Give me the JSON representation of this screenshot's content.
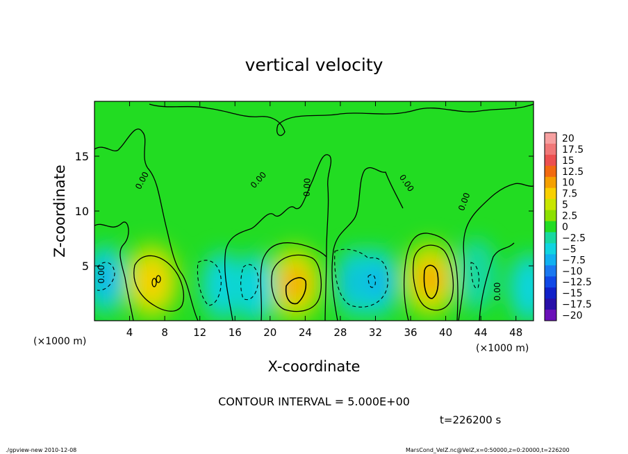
{
  "chart_data": {
    "type": "heatmap",
    "title": "vertical velocity",
    "xlabel": "X-coordinate",
    "ylabel": "Z-coordinate",
    "x_unit_left": "(×1000 m)",
    "x_unit_right": "(×1000 m)",
    "xlim": [
      0,
      50
    ],
    "ylim": [
      0,
      20
    ],
    "x_ticks": [
      4,
      8,
      12,
      16,
      20,
      24,
      28,
      32,
      36,
      40,
      44,
      48
    ],
    "y_ticks": [
      5,
      10,
      15
    ],
    "contour_interval_text": "CONTOUR INTERVAL = 5.000E+00",
    "time_text": "t=226200 s",
    "contour_labels": [
      "0.00",
      "0.00",
      "0.00",
      "0.00",
      "0.00",
      "0.00",
      "0.00"
    ],
    "colorbar": {
      "levels": [
        20,
        17.5,
        15,
        12.5,
        10,
        7.5,
        5,
        2.5,
        0,
        -2.5,
        -5,
        -7.5,
        -10,
        -12.5,
        -15,
        -17.5,
        -20
      ],
      "labels": [
        "20",
        "17.5",
        "15",
        "12.5",
        "10",
        "7.5",
        "5",
        "2.5",
        "0",
        "−2.5",
        "−5",
        "−7.5",
        "−10",
        "−12.5",
        "−15",
        "−17.5",
        "−20"
      ],
      "colors": [
        "#f6a0a0",
        "#f07878",
        "#ec5050",
        "#f26a10",
        "#f5a000",
        "#f8d000",
        "#c8e600",
        "#8ce000",
        "#22dc22",
        "#18d8a0",
        "#10d4e0",
        "#10b0f0",
        "#1a78f0",
        "#1048e6",
        "#1020c8",
        "#2810a8",
        "#6a10b8"
      ]
    },
    "features": [
      {
        "kind": "updraft",
        "x": 6.5,
        "z": 3.6,
        "peak": 9
      },
      {
        "kind": "updraft",
        "x": 22.8,
        "z": 3.4,
        "peak": 12
      },
      {
        "kind": "updraft",
        "x": 38.2,
        "z": 3.8,
        "peak": 12
      },
      {
        "kind": "downdraft",
        "x": 1.2,
        "z": 3.8,
        "peak": -9
      },
      {
        "kind": "downdraft",
        "x": 14.5,
        "z": 3.2,
        "peak": -6
      },
      {
        "kind": "downdraft",
        "x": 18.2,
        "z": 3.0,
        "peak": -5
      },
      {
        "kind": "downdraft",
        "x": 29.8,
        "z": 3.5,
        "peak": -9
      },
      {
        "kind": "downdraft",
        "x": 32.2,
        "z": 3.5,
        "peak": -8
      },
      {
        "kind": "downdraft",
        "x": 43.5,
        "z": 4.2,
        "peak": -4
      },
      {
        "kind": "downdraft",
        "x": 49.5,
        "z": 3.0,
        "peak": -6
      }
    ]
  },
  "footer": {
    "left": "./gpview-new   2010-12-08",
    "right": "MarsCond_VelZ.nc@VelZ,x=0:50000,z=0:20000,t=226200"
  }
}
